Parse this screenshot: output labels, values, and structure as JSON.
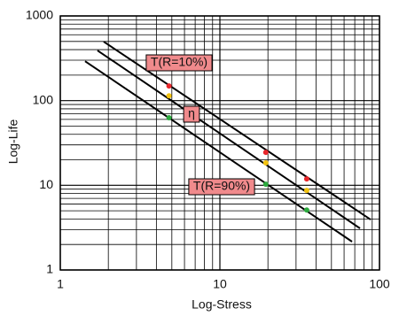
{
  "chart_data": {
    "type": "line",
    "x_label": "Log-Stress",
    "y_label": "Log-Life",
    "xlim": [
      1,
      100
    ],
    "ylim": [
      1,
      1000
    ],
    "xticks": [
      1,
      10,
      100
    ],
    "yticks": [
      1,
      10,
      100,
      1000
    ],
    "log_x": true,
    "log_y": true,
    "grid": true,
    "series": [
      {
        "name": "T(R=10%)",
        "color": "#000000",
        "x": [
          1.87,
          88
        ],
        "values": [
          497,
          3.94
        ]
      },
      {
        "name": "η",
        "color": "#000000",
        "x": [
          1.71,
          75.5
        ],
        "values": [
          391,
          3.1
        ]
      },
      {
        "name": "T(R=90%)",
        "color": "#000000",
        "x": [
          1.43,
          67.3
        ],
        "values": [
          292,
          2.16
        ]
      }
    ],
    "points": [
      {
        "color": "#e8262b",
        "x": [
          4.8,
          19.4,
          35
        ],
        "values": [
          149,
          24.5,
          11.9
        ]
      },
      {
        "color": "#f2c20f",
        "x": [
          4.8,
          19.4,
          35
        ],
        "values": [
          114,
          18.4,
          8.7
        ]
      },
      {
        "color": "#2daa3f",
        "x": [
          4.8,
          19.4,
          35
        ],
        "values": [
          62.7,
          10.3,
          5.1
        ]
      }
    ],
    "label_fill": "#f08a8c"
  }
}
